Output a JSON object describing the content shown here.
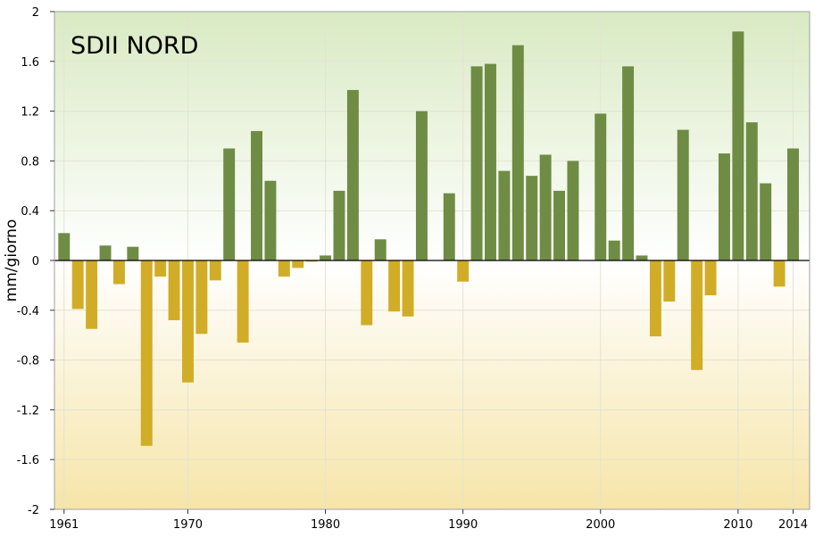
{
  "chart_data": {
    "type": "bar",
    "title": "SDII NORD",
    "xlabel": "",
    "ylabel": "mm/giorno",
    "xlim": [
      1960.3,
      2015.2
    ],
    "ylim": [
      -2,
      2
    ],
    "x_ticks": [
      1961,
      1970,
      1980,
      1990,
      2000,
      2010,
      2014
    ],
    "y_ticks": [
      2,
      1.6,
      1.2,
      0.8,
      0.4,
      0,
      -0.4,
      -0.8,
      -1.2,
      -1.6,
      -2
    ],
    "y_tick_labels": [
      "2",
      "1.6",
      "1.2",
      "0.8",
      "0.4",
      "0",
      "-0.4",
      "-0.8",
      "-1.2",
      "-1.6",
      "-2"
    ],
    "grid": true,
    "colors": {
      "positive": "#6e8c44",
      "negative": "#d1ad27",
      "background_top": "#d9eac3",
      "background_mid": "#ffffff",
      "background_bottom": "#f6e5a9",
      "frame": "#a0a0a0"
    },
    "x": [
      1961,
      1962,
      1963,
      1964,
      1965,
      1966,
      1967,
      1968,
      1969,
      1970,
      1971,
      1972,
      1973,
      1974,
      1975,
      1976,
      1977,
      1978,
      1979,
      1980,
      1981,
      1982,
      1983,
      1984,
      1985,
      1986,
      1987,
      1988,
      1989,
      1990,
      1991,
      1992,
      1993,
      1994,
      1995,
      1996,
      1997,
      1998,
      1999,
      2000,
      2001,
      2002,
      2003,
      2004,
      2005,
      2006,
      2007,
      2008,
      2009,
      2010,
      2011,
      2012,
      2013,
      2014
    ],
    "values": [
      0.22,
      -0.39,
      -0.55,
      0.12,
      -0.19,
      0.11,
      -1.49,
      -0.13,
      -0.48,
      -0.98,
      -0.59,
      -0.16,
      0.9,
      -0.66,
      1.04,
      0.64,
      -0.13,
      -0.06,
      -0.01,
      0.04,
      0.56,
      1.37,
      -0.52,
      0.17,
      -0.41,
      -0.45,
      1.2,
      0.0,
      0.54,
      -0.17,
      1.56,
      1.58,
      0.72,
      1.73,
      0.68,
      0.85,
      0.56,
      0.8,
      0.0,
      1.18,
      0.16,
      1.56,
      0.04,
      -0.61,
      -0.33,
      1.05,
      -0.88,
      -0.28,
      0.86,
      1.84,
      1.11,
      0.62,
      -0.21,
      0.9
    ]
  }
}
